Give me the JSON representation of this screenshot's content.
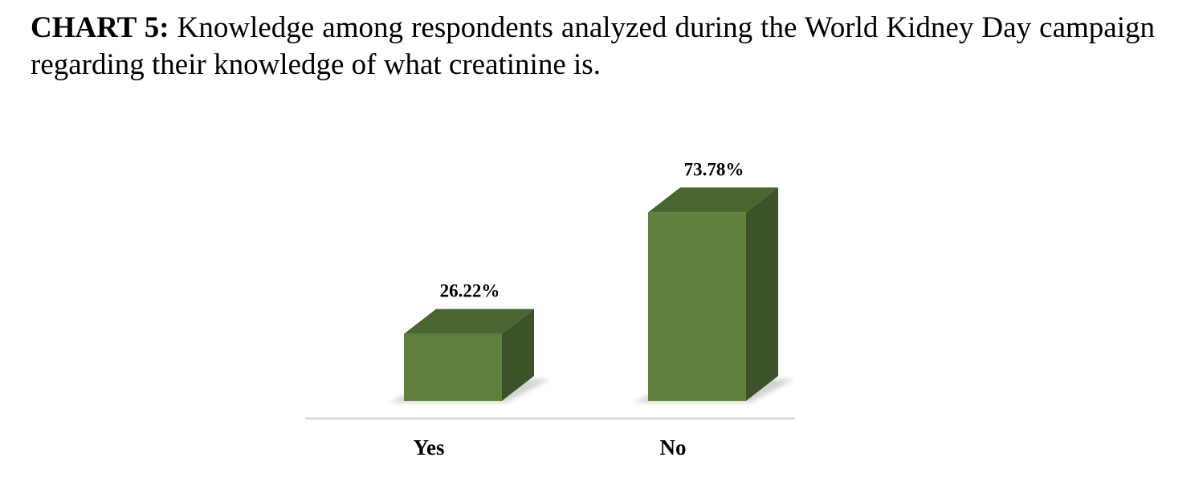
{
  "caption": {
    "label": "CHART 5:",
    "text": "Knowledge among respondents analyzed during the World Kidney Day campaign regarding their knowledge of what creatinine is."
  },
  "colors": {
    "bar_front": "#5e803c",
    "bar_top": "#4a6630",
    "bar_side": "#3c5229",
    "axis": "#d9d9d9",
    "shadow": "#b0b0b0"
  },
  "chart_data": {
    "type": "bar",
    "style": "3d-column",
    "categories": [
      "Yes",
      "No"
    ],
    "values": [
      26.22,
      73.78
    ],
    "value_labels": [
      "26.22%",
      "73.78%"
    ],
    "unit": "%",
    "title": "",
    "xlabel": "",
    "ylabel": "",
    "ylim": [
      0,
      100
    ],
    "grid": false,
    "legend": "none"
  }
}
